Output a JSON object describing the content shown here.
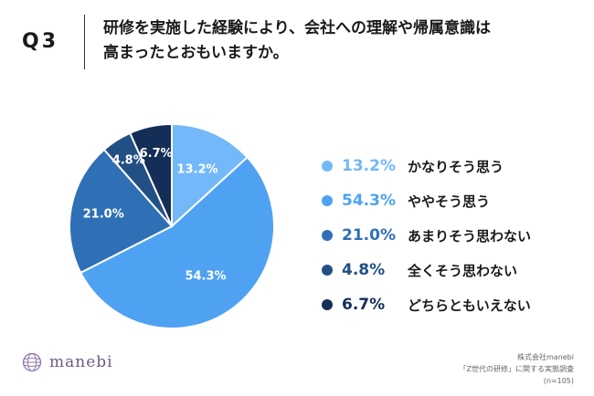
{
  "header": {
    "question_number": "Q3",
    "question_line1": "研修を実施した経験により、会社への理解や帰属意識は",
    "question_line2": "高まったとおもいますか。"
  },
  "chart_data": {
    "type": "pie",
    "title": "研修を実施した経験により、会社への理解や帰属意識は高まったとおもいますか。",
    "unit": "%",
    "start": "12 o'clock, clockwise",
    "slices": [
      {
        "label": "かなりそう思う",
        "value": 13.2,
        "value_label": "13.2%",
        "color": "#73b8f8"
      },
      {
        "label": "ややそう思う",
        "value": 54.3,
        "value_label": "54.3%",
        "color": "#4fa2f2"
      },
      {
        "label": "あまりそう思わない",
        "value": 21.0,
        "value_label": "21.0%",
        "color": "#2f6fb6"
      },
      {
        "label": "全くそう思わない",
        "value": 4.8,
        "value_label": "4.8%",
        "color": "#224f84"
      },
      {
        "label": "どちらともいえない",
        "value": 6.7,
        "value_label": "6.7%",
        "color": "#152e57"
      }
    ],
    "legend_position": "right"
  },
  "footer": {
    "logo_text": "manebi",
    "source_line1": "株式会社manebi",
    "source_line2": "「Z世代の研修」に関する実態調査",
    "source_line3": "(n=105)"
  },
  "colors": {
    "logo": "#6d5a86",
    "label_light": "#ffffff"
  }
}
